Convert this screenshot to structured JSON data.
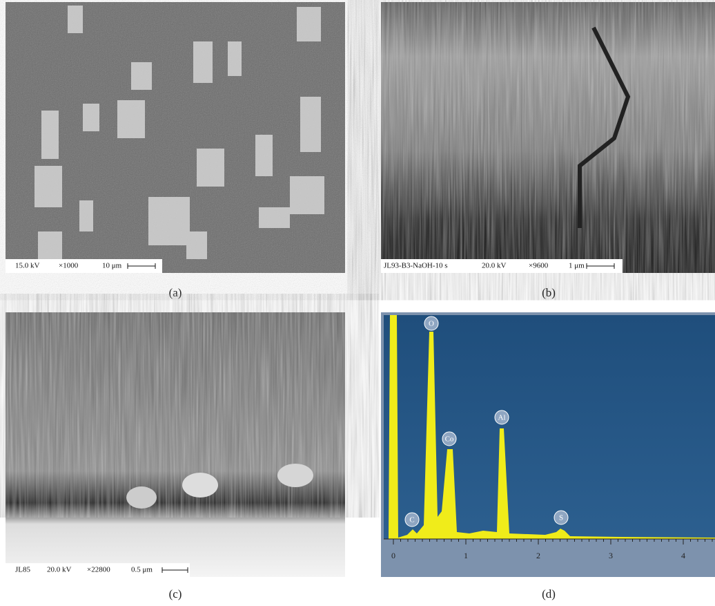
{
  "panels": [
    {
      "caption": "(a)",
      "scale_bar": [
        "15.0 kV",
        "×1000",
        "10 μm"
      ]
    },
    {
      "caption": "(b)",
      "scale_bar": [
        "JL93-B3-NaOH-10 s",
        "20.0 kV",
        "×9600",
        "1 μm"
      ]
    },
    {
      "caption": "(c)",
      "scale_bar": [
        "JL85",
        "20.0 kV",
        "×22800",
        "0.5 μm"
      ]
    },
    {
      "caption": "(d)",
      "x_ticks": [
        "0",
        "1",
        "2",
        "3",
        "4"
      ],
      "peaks": [
        "O",
        "Co",
        "Al",
        "C",
        "S"
      ]
    }
  ]
}
